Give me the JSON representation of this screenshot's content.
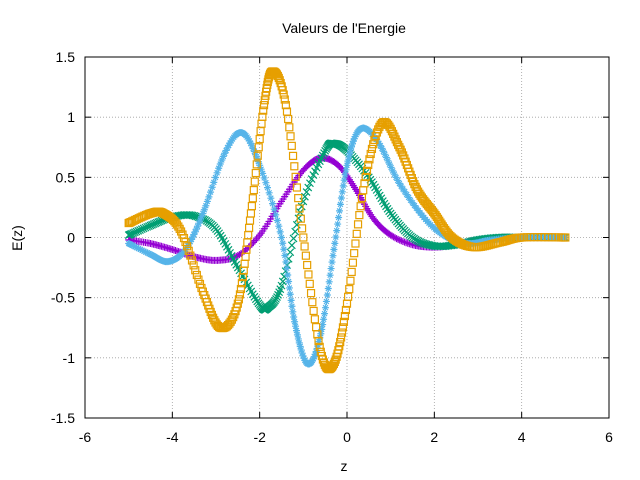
{
  "chart_data": {
    "type": "scatter",
    "title": "Valeurs de l'Energie",
    "xlabel": "z",
    "ylabel": "E(z)",
    "xlim": [
      -6,
      6
    ],
    "ylim": [
      -1.5,
      1.5
    ],
    "xticks": [
      -6,
      -4,
      -2,
      0,
      2,
      4,
      6
    ],
    "yticks": [
      -1.5,
      -1,
      -0.5,
      0,
      0.5,
      1,
      1.5
    ],
    "xtick_labels": [
      "-6",
      "-4",
      "-2",
      "0",
      "2",
      "4",
      "6"
    ],
    "ytick_labels": [
      "-1.5",
      "-1",
      "-0.5",
      "0",
      "0.5",
      "1",
      "1.5"
    ],
    "grid": true,
    "series": [
      {
        "color": "#9400d3",
        "marker": "plus",
        "points": [
          [
            -5,
            -0.02
          ],
          [
            -4.5,
            -0.05
          ],
          [
            -4,
            -0.1
          ],
          [
            -3.5,
            -0.16
          ],
          [
            -3,
            -0.19
          ],
          [
            -2.5,
            -0.15
          ],
          [
            -2,
            0.02
          ],
          [
            -1.5,
            0.3
          ],
          [
            -1,
            0.56
          ],
          [
            -0.6,
            0.66
          ],
          [
            -0.2,
            0.6
          ],
          [
            0.2,
            0.4
          ],
          [
            0.6,
            0.16
          ],
          [
            1,
            0.02
          ],
          [
            1.5,
            -0.06
          ],
          [
            2,
            -0.08
          ],
          [
            2.5,
            -0.06
          ],
          [
            3,
            -0.02
          ],
          [
            3.5,
            0
          ],
          [
            4,
            0
          ],
          [
            5,
            0
          ]
        ]
      },
      {
        "color": "#009e73",
        "marker": "cross",
        "points": [
          [
            -5,
            0.02
          ],
          [
            -4.5,
            0.1
          ],
          [
            -4,
            0.17
          ],
          [
            -3.5,
            0.18
          ],
          [
            -3,
            0.07
          ],
          [
            -2.5,
            -0.25
          ],
          [
            -2,
            -0.56
          ],
          [
            -1.8,
            -0.58
          ],
          [
            -1.5,
            -0.4
          ],
          [
            -1,
            0.3
          ],
          [
            -0.5,
            0.72
          ],
          [
            -0.3,
            0.78
          ],
          [
            0,
            0.72
          ],
          [
            0.5,
            0.5
          ],
          [
            1,
            0.2
          ],
          [
            1.5,
            0
          ],
          [
            2,
            -0.07
          ],
          [
            2.5,
            -0.06
          ],
          [
            3,
            -0.02
          ],
          [
            3.5,
            0
          ],
          [
            4,
            0
          ],
          [
            5,
            0
          ]
        ]
      },
      {
        "color": "#56b4e9",
        "marker": "star",
        "points": [
          [
            -5,
            -0.05
          ],
          [
            -4.5,
            -0.14
          ],
          [
            -4.1,
            -0.2
          ],
          [
            -3.7,
            -0.1
          ],
          [
            -3.3,
            0.2
          ],
          [
            -2.8,
            0.7
          ],
          [
            -2.4,
            0.87
          ],
          [
            -2,
            0.6
          ],
          [
            -1.5,
            0.0
          ],
          [
            -1.2,
            -0.7
          ],
          [
            -0.9,
            -1.05
          ],
          [
            -0.6,
            -0.8
          ],
          [
            -0.3,
            -0.1
          ],
          [
            0,
            0.6
          ],
          [
            0.3,
            0.9
          ],
          [
            0.7,
            0.8
          ],
          [
            1.2,
            0.45
          ],
          [
            1.8,
            0.15
          ],
          [
            2.3,
            0
          ],
          [
            2.8,
            -0.05
          ],
          [
            3.3,
            -0.02
          ],
          [
            4,
            0
          ],
          [
            5,
            0
          ]
        ]
      },
      {
        "color": "#e69f00",
        "marker": "square",
        "points": [
          [
            -5,
            0.12
          ],
          [
            -4.5,
            0.2
          ],
          [
            -4.2,
            0.2
          ],
          [
            -3.8,
            0.05
          ],
          [
            -3.3,
            -0.45
          ],
          [
            -2.9,
            -0.75
          ],
          [
            -2.5,
            -0.55
          ],
          [
            -2.2,
            0.2
          ],
          [
            -1.9,
            1.1
          ],
          [
            -1.7,
            1.38
          ],
          [
            -1.4,
            1.1
          ],
          [
            -1,
            0.0
          ],
          [
            -0.6,
            -0.95
          ],
          [
            -0.3,
            -1.05
          ],
          [
            0,
            -0.55
          ],
          [
            0.4,
            0.45
          ],
          [
            0.8,
            0.95
          ],
          [
            1.2,
            0.75
          ],
          [
            1.6,
            0.4
          ],
          [
            2,
            0.2
          ],
          [
            2.4,
            0
          ],
          [
            2.9,
            -0.08
          ],
          [
            3.5,
            -0.04
          ],
          [
            4,
            0
          ],
          [
            5,
            0
          ]
        ]
      }
    ]
  }
}
